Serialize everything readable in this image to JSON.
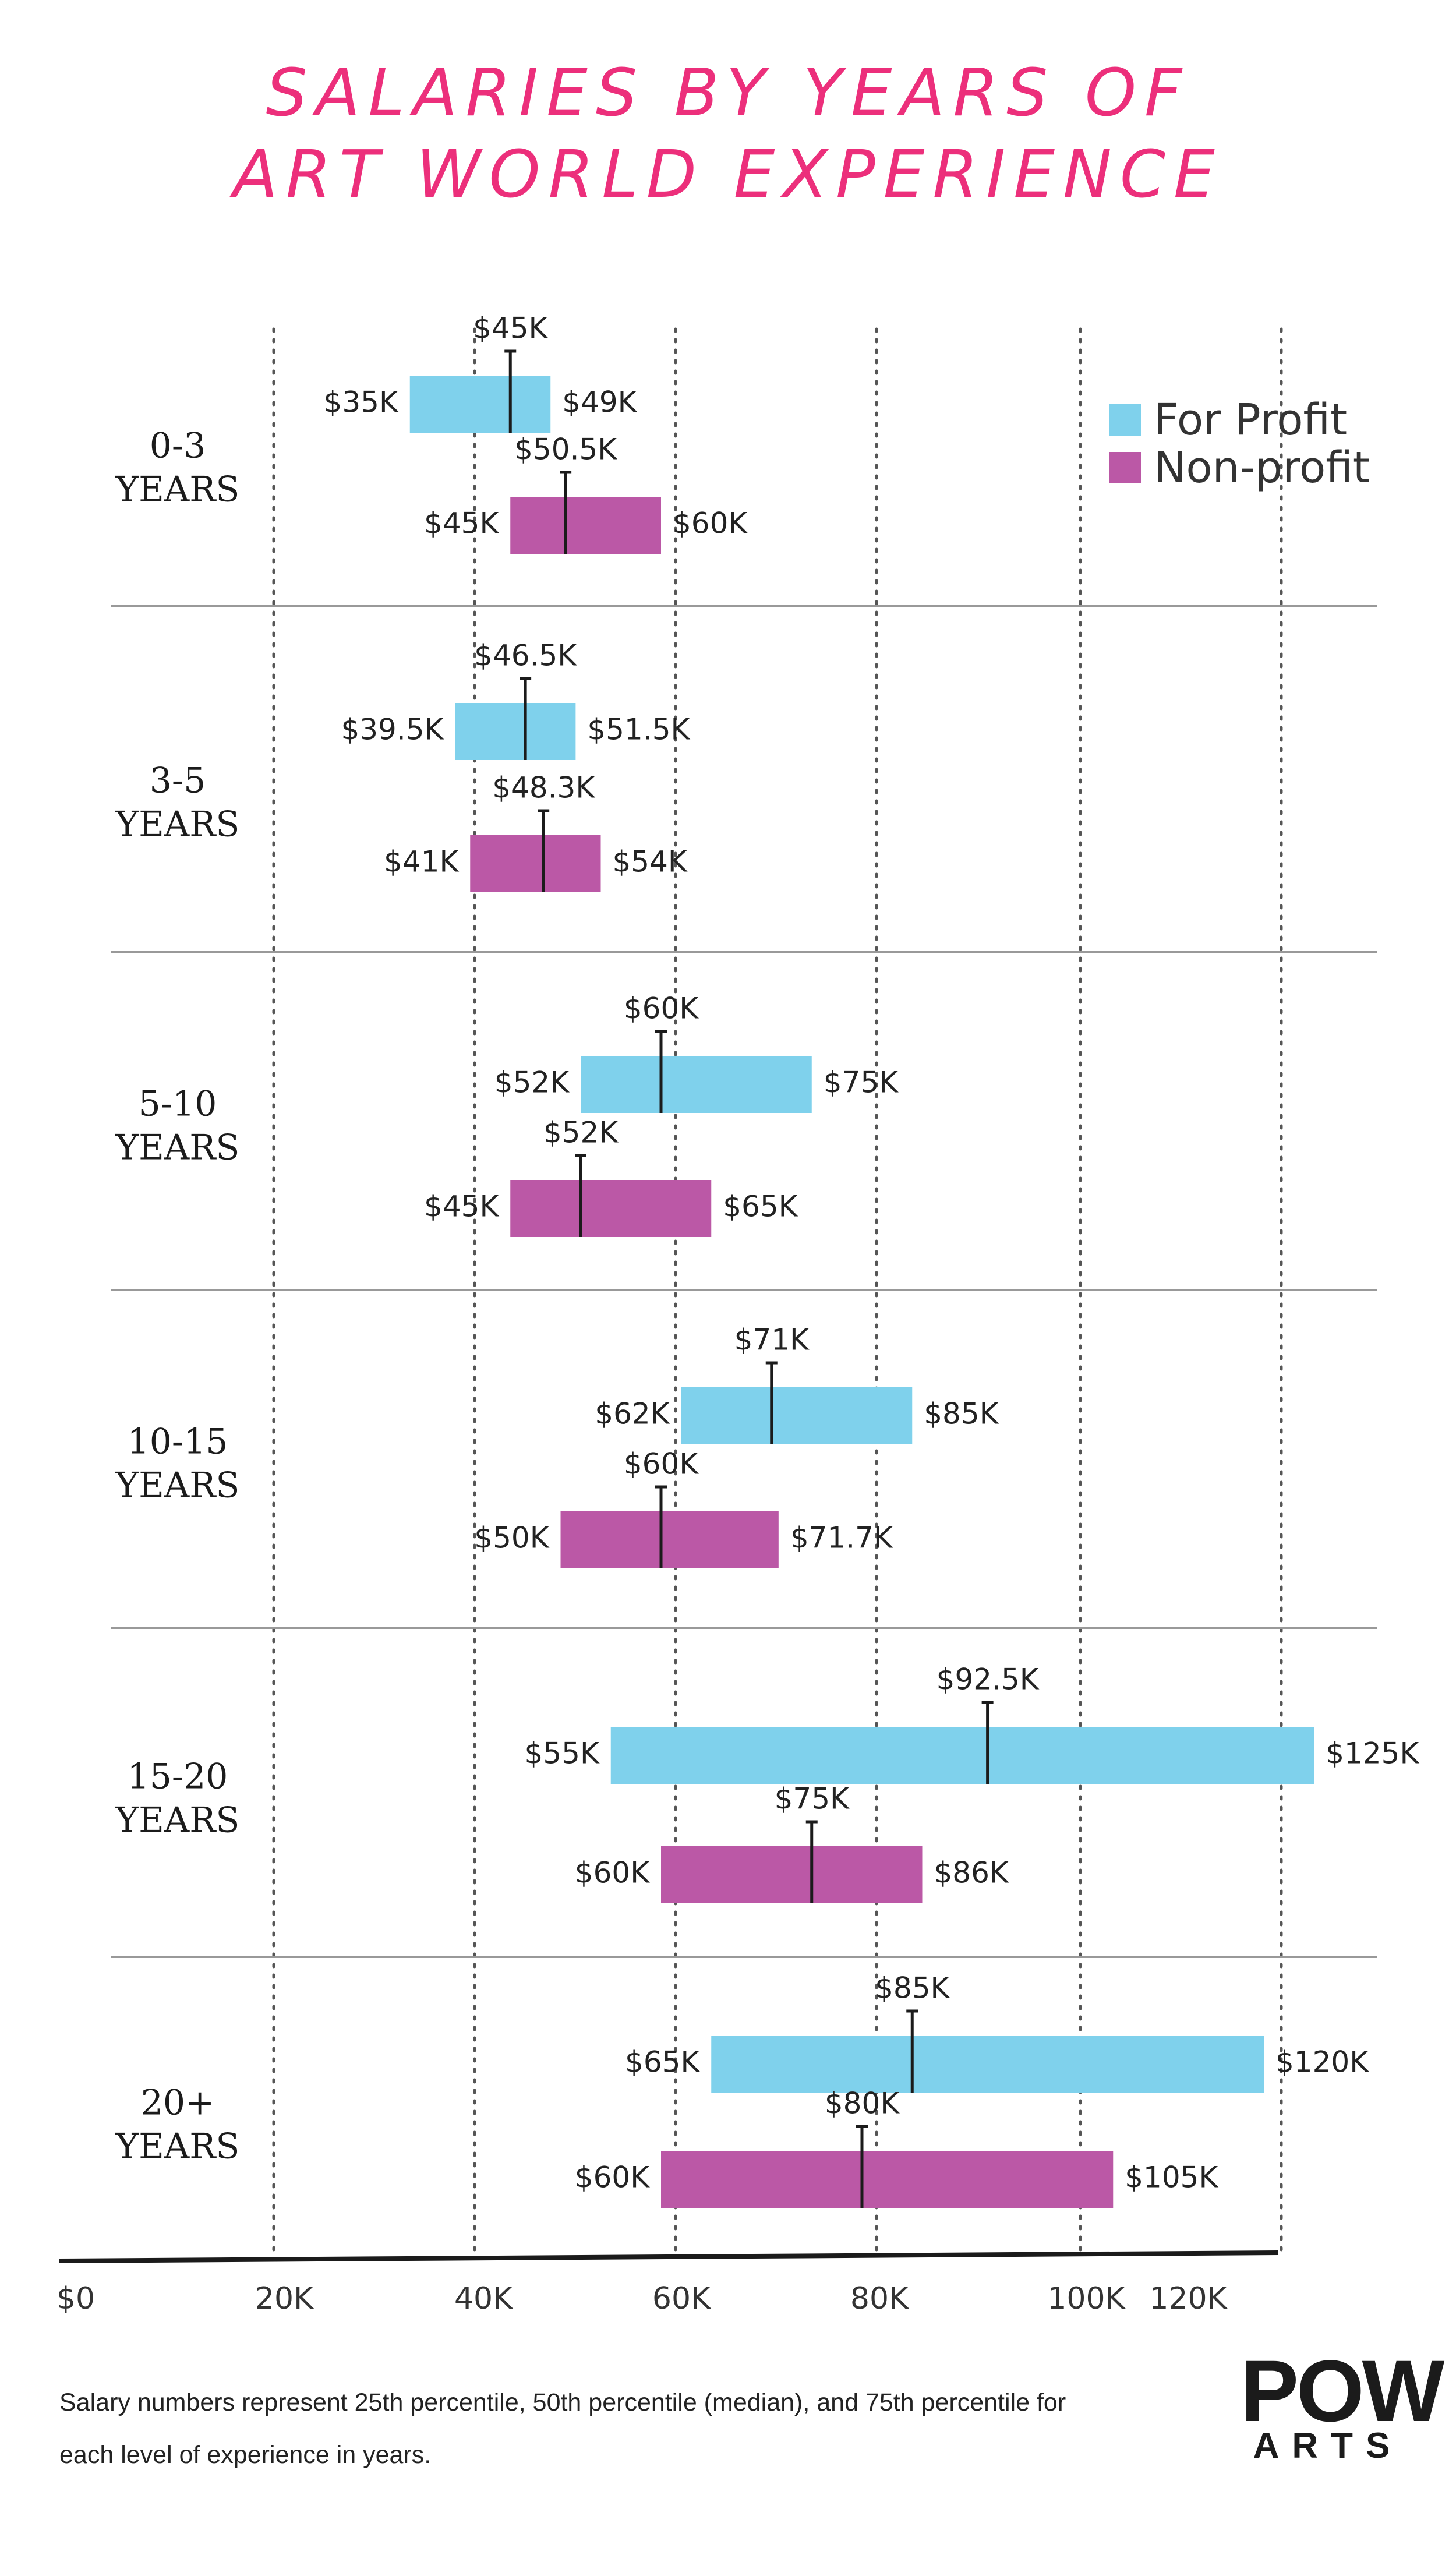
{
  "title_line1": "SALARIES BY YEARS OF",
  "title_line2": "ART WORLD EXPERIENCE",
  "colors": {
    "for_profit": "#7fd1ec",
    "non_profit": "#bb58a6",
    "title": "#ec2f7b"
  },
  "legend": {
    "for_profit": "For Profit",
    "non_profit": "Non-profit"
  },
  "footnote": "Salary numbers represent 25th percentile, 50th percentile (median), and 75th percentile for each level of experience in years.",
  "logo": {
    "line1": "POW",
    "line2": "ARTS"
  },
  "chart_data": {
    "type": "range-bar",
    "title": "SALARIES BY YEARS OF ART WORLD EXPERIENCE",
    "xlabel": "",
    "ylabel": "",
    "grid": true,
    "legend_position": "top-right",
    "x_ticks": [
      {
        "value": 0,
        "label": "$0"
      },
      {
        "value": 20,
        "label": "20K"
      },
      {
        "value": 40,
        "label": "40K"
      },
      {
        "value": 60,
        "label": "60K"
      },
      {
        "value": 80,
        "label": "80K"
      },
      {
        "value": 100,
        "label": "100K"
      },
      {
        "value": 120,
        "label": "120K"
      }
    ],
    "series_names": [
      "For Profit",
      "Non-profit"
    ],
    "groups": [
      {
        "line1": "0-3",
        "line2": "YEARS",
        "bars": [
          {
            "series": "For Profit",
            "p25": 35,
            "median": 45,
            "p75": 49,
            "p25_label": "$35K",
            "median_label": "$45K",
            "p75_label": "$49K"
          },
          {
            "series": "Non-profit",
            "p25": 45,
            "median": 50.5,
            "p75": 60,
            "p25_label": "$45K",
            "median_label": "$50.5K",
            "p75_label": "$60K"
          }
        ]
      },
      {
        "line1": "3-5",
        "line2": "YEARS",
        "bars": [
          {
            "series": "For Profit",
            "p25": 39.5,
            "median": 46.5,
            "p75": 51.5,
            "p25_label": "$39.5K",
            "median_label": "$46.5K",
            "p75_label": "$51.5K"
          },
          {
            "series": "Non-profit",
            "p25": 41,
            "median": 48.3,
            "p75": 54,
            "p25_label": "$41K",
            "median_label": "$48.3K",
            "p75_label": "$54K"
          }
        ]
      },
      {
        "line1": "5-10",
        "line2": "YEARS",
        "bars": [
          {
            "series": "For Profit",
            "p25": 52,
            "median": 60,
            "p75": 75,
            "p25_label": "$52K",
            "median_label": "$60K",
            "p75_label": "$75K"
          },
          {
            "series": "Non-profit",
            "p25": 45,
            "median": 52,
            "p75": 65,
            "p25_label": "$45K",
            "median_label": "$52K",
            "p75_label": "$65K"
          }
        ]
      },
      {
        "line1": "10-15",
        "line2": "YEARS",
        "bars": [
          {
            "series": "For Profit",
            "p25": 62,
            "median": 71,
            "p75": 85,
            "p25_label": "$62K",
            "median_label": "$71K",
            "p75_label": "$85K"
          },
          {
            "series": "Non-profit",
            "p25": 50,
            "median": 60,
            "p75": 71.7,
            "p25_label": "$50K",
            "median_label": "$60K",
            "p75_label": "$71.7K"
          }
        ]
      },
      {
        "line1": "15-20",
        "line2": "YEARS",
        "bars": [
          {
            "series": "For Profit",
            "p25": 55,
            "median": 92.5,
            "p75": 125,
            "p25_label": "$55K",
            "median_label": "$92.5K",
            "p75_label": "$125K"
          },
          {
            "series": "Non-profit",
            "p25": 60,
            "median": 75,
            "p75": 86,
            "p25_label": "$60K",
            "median_label": "$75K",
            "p75_label": "$86K"
          }
        ]
      },
      {
        "line1": "20+",
        "line2": "YEARS",
        "bars": [
          {
            "series": "For Profit",
            "p25": 65,
            "median": 85,
            "p75": 120,
            "p25_label": "$65K",
            "median_label": "$85K",
            "p75_label": "$120K"
          },
          {
            "series": "Non-profit",
            "p25": 60,
            "median": 80,
            "p75": 105,
            "p25_label": "$60K",
            "median_label": "$80K",
            "p75_label": "$105K"
          }
        ]
      }
    ]
  }
}
